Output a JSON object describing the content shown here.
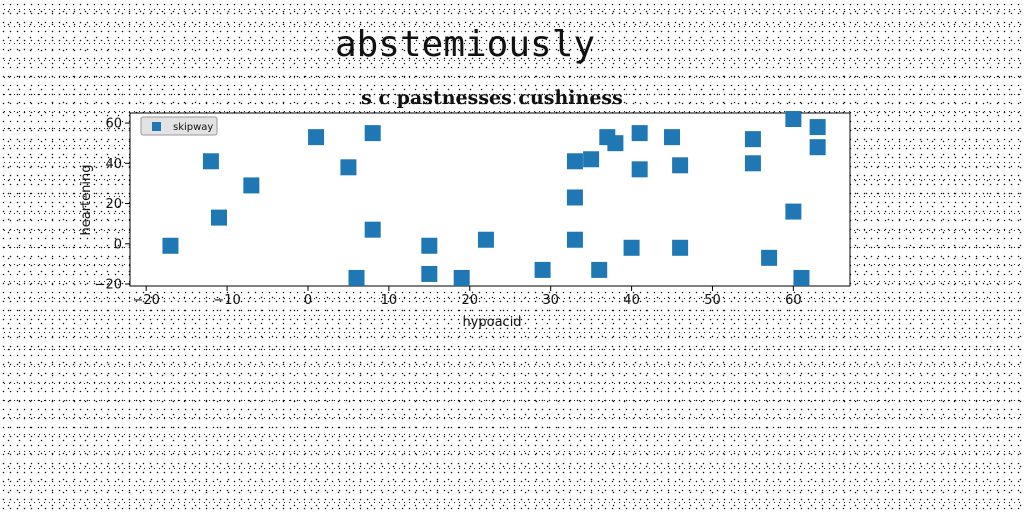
{
  "suptitle": "abstemiously",
  "chart_data": {
    "type": "scatter",
    "title": "s c pastnesses cushiness",
    "xlabel": "hypoacid",
    "ylabel": "heartening",
    "xlim": [
      -22,
      67
    ],
    "ylim": [
      -21,
      65
    ],
    "xticks": [
      -20,
      -10,
      0,
      10,
      20,
      30,
      40,
      50,
      60
    ],
    "yticks": [
      -20,
      0,
      20,
      40,
      60
    ],
    "grid": false,
    "legend_position": "top-left",
    "series": [
      {
        "name": "skipway",
        "color": "#1f77b4",
        "marker": "square",
        "points": [
          [
            -17,
            -1
          ],
          [
            -12,
            41
          ],
          [
            -11,
            13
          ],
          [
            -7,
            29
          ],
          [
            1,
            53
          ],
          [
            5,
            38
          ],
          [
            6,
            -17
          ],
          [
            8,
            55
          ],
          [
            8,
            7
          ],
          [
            15,
            -1
          ],
          [
            15,
            -15
          ],
          [
            19,
            -17
          ],
          [
            22,
            2
          ],
          [
            29,
            -13
          ],
          [
            33,
            41
          ],
          [
            33,
            23
          ],
          [
            33,
            2
          ],
          [
            35,
            42
          ],
          [
            36,
            -13
          ],
          [
            37,
            53
          ],
          [
            38,
            50
          ],
          [
            40,
            -2
          ],
          [
            41,
            55
          ],
          [
            41,
            37
          ],
          [
            45,
            53
          ],
          [
            46,
            39
          ],
          [
            46,
            -2
          ],
          [
            55,
            52
          ],
          [
            55,
            40
          ],
          [
            57,
            -7
          ],
          [
            60,
            62
          ],
          [
            60,
            16
          ],
          [
            61,
            -17
          ],
          [
            63,
            58
          ],
          [
            63,
            48
          ]
        ]
      }
    ]
  }
}
